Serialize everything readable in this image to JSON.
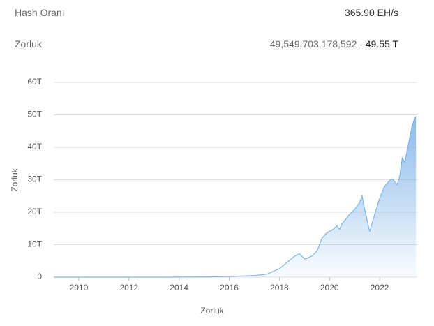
{
  "stats": {
    "rows": [
      {
        "label": "Hash Oranı",
        "value": "365.90 EH/s"
      },
      {
        "label": "Zorluk",
        "value": "49,549,703,178,592",
        "separator": "-",
        "short": "49.55 T"
      }
    ]
  },
  "chart_data": {
    "type": "area",
    "x_label": "Zorluk",
    "y_label": "Zorluk",
    "x": [
      2009,
      2013,
      2014,
      2015,
      2016,
      2017,
      2017.5,
      2018,
      2018.3,
      2018.6,
      2018.8,
      2019.0,
      2019.1,
      2019.3,
      2019.5,
      2019.7,
      2019.9,
      2020.1,
      2020.3,
      2020.4,
      2020.5,
      2020.8,
      2021.0,
      2021.2,
      2021.3,
      2021.4,
      2021.6,
      2021.8,
      2022.0,
      2022.2,
      2022.4,
      2022.5,
      2022.7,
      2022.8,
      2022.9,
      2023.0,
      2023.1,
      2023.2,
      2023.3,
      2023.4,
      2023.45
    ],
    "series": [
      {
        "name": "Zorluk",
        "color": "#7fb3e8",
        "values": [
          0,
          0,
          0.02,
          0.05,
          0.2,
          0.5,
          0.9,
          2.6,
          4.5,
          6.4,
          7.2,
          5.6,
          5.8,
          6.5,
          8,
          12,
          13.7,
          14.5,
          15.8,
          14.7,
          16.5,
          19.3,
          20.8,
          23,
          25,
          21,
          14,
          19.3,
          24.3,
          28,
          29.8,
          30.3,
          28.5,
          31,
          36.8,
          35.4,
          39.1,
          43,
          46.8,
          48.9,
          49.55
        ]
      }
    ],
    "xlim": [
      2009,
      2023.5
    ],
    "xticks": [
      2010,
      2012,
      2014,
      2016,
      2018,
      2020,
      2022
    ],
    "ylim": [
      0,
      60
    ],
    "yticks": [
      {
        "value": 0,
        "label": "0"
      },
      {
        "value": 10,
        "label": "10T"
      },
      {
        "value": 20,
        "label": "20T"
      },
      {
        "value": 30,
        "label": "30T"
      },
      {
        "value": 40,
        "label": "40T"
      },
      {
        "value": 50,
        "label": "50T"
      },
      {
        "value": 60,
        "label": "60T"
      }
    ],
    "grid": true
  }
}
